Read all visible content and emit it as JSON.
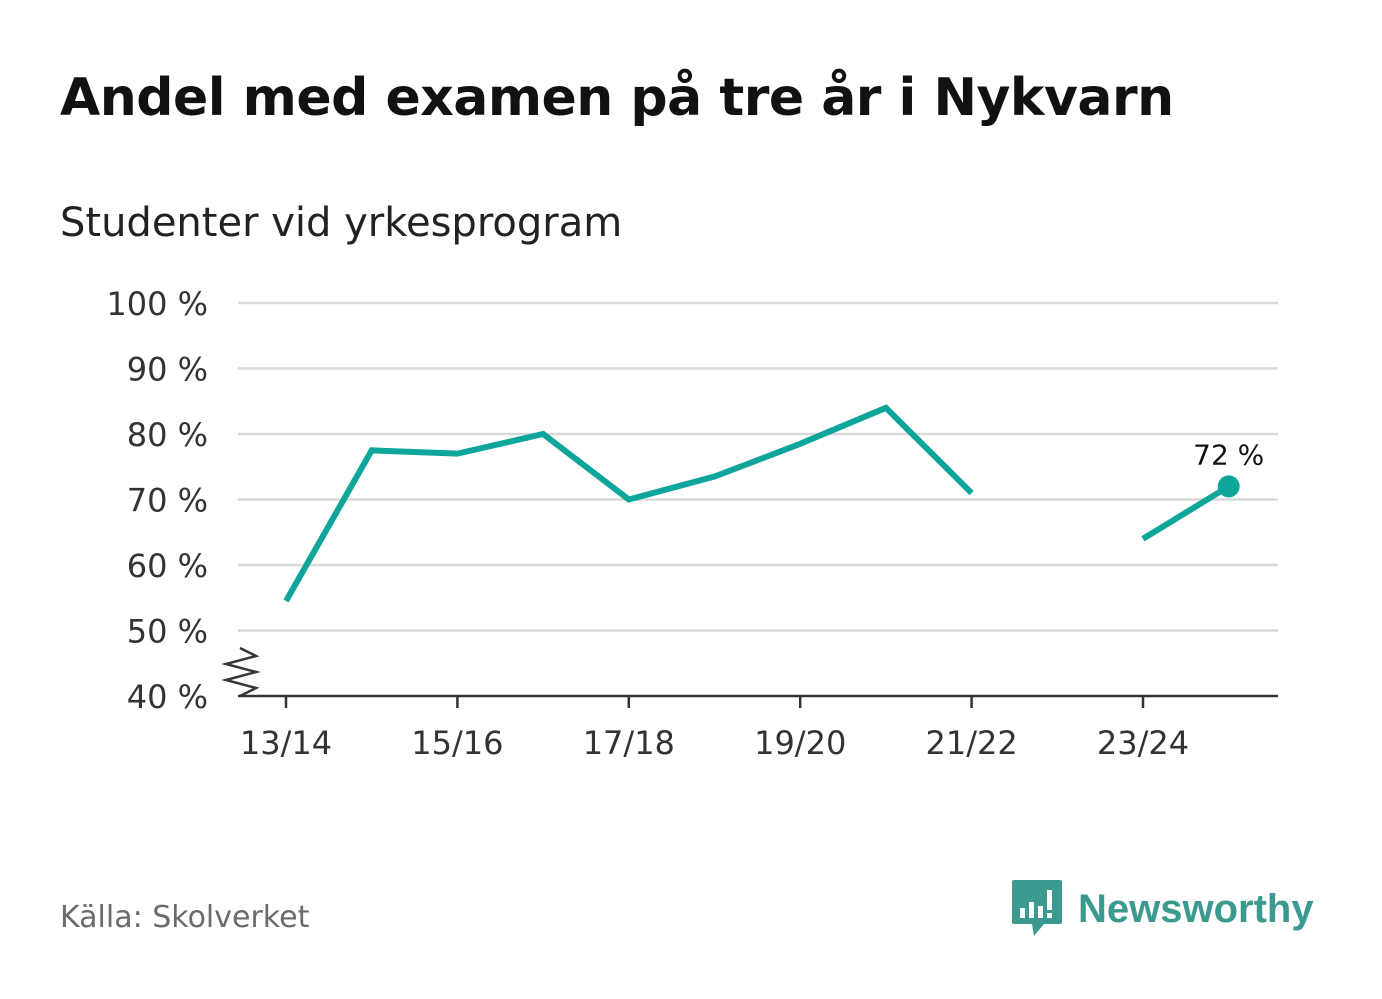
{
  "header": {
    "title": "Andel med examen på tre år i Nykvarn",
    "subtitle": "Studenter vid yrkesprogram"
  },
  "footer": {
    "source": "Källa: Skolverket",
    "brand": "Newsworthy"
  },
  "colors": {
    "line": "#0ea59b",
    "grid": "#d9d9d9",
    "axis": "#333333",
    "brand": "#3a9a8f"
  },
  "chart_data": {
    "type": "line",
    "title": "Andel med examen på tre år i Nykvarn",
    "subtitle": "Studenter vid yrkesprogram",
    "xlabel": "",
    "ylabel": "",
    "x": [
      "13/14",
      "14/15",
      "15/16",
      "16/17",
      "17/18",
      "18/19",
      "19/20",
      "20/21",
      "21/22",
      "22/23",
      "23/24",
      "24/25"
    ],
    "x_tick_labels": [
      "13/14",
      "15/16",
      "17/18",
      "19/20",
      "21/22",
      "23/24"
    ],
    "y_tick_labels": [
      "40 %",
      "50 %",
      "60 %",
      "70 %",
      "80 %",
      "90 %",
      "100 %"
    ],
    "y_ticks": [
      40,
      50,
      60,
      70,
      80,
      90,
      100
    ],
    "ylim": [
      40,
      100
    ],
    "y_axis_break": true,
    "grid": true,
    "series": [
      {
        "values": [
          54.5,
          77.5,
          77,
          80,
          70,
          73.5,
          78.5,
          84,
          71,
          null,
          64,
          72
        ]
      }
    ],
    "annotations": [
      {
        "x": "24/25",
        "value": 72,
        "label": "72 %"
      }
    ]
  }
}
